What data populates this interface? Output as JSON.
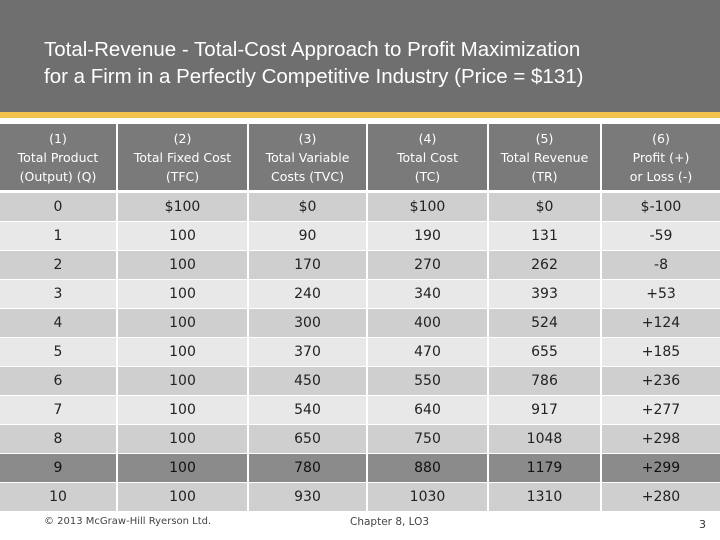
{
  "slide": {
    "title_line1": "Total-Revenue - Total-Cost Approach to Profit Maximization",
    "title_line2": "for a Firm in a Perfectly Competitive Industry (Price = $131)"
  },
  "table": {
    "headers": [
      {
        "num": "(1)",
        "line1": "Total Product",
        "line2": "(Output) (Q)"
      },
      {
        "num": "(2)",
        "line1": "Total Fixed Cost",
        "line2": "(TFC)"
      },
      {
        "num": "(3)",
        "line1": "Total Variable",
        "line2": "Costs (TVC)"
      },
      {
        "num": "(4)",
        "line1": "Total Cost",
        "line2": "(TC)"
      },
      {
        "num": "(5)",
        "line1": "Total Revenue",
        "line2": "(TR)"
      },
      {
        "num": "(6)",
        "line1": "Profit (+)",
        "line2": "or Loss (-)"
      }
    ],
    "rows": [
      [
        "0",
        "$100",
        "$0",
        "$100",
        "$0",
        "$-100"
      ],
      [
        "1",
        "100",
        "90",
        "190",
        "131",
        "-59"
      ],
      [
        "2",
        "100",
        "170",
        "270",
        "262",
        "-8"
      ],
      [
        "3",
        "100",
        "240",
        "340",
        "393",
        "+53"
      ],
      [
        "4",
        "100",
        "300",
        "400",
        "524",
        "+124"
      ],
      [
        "5",
        "100",
        "370",
        "470",
        "655",
        "+185"
      ],
      [
        "6",
        "100",
        "450",
        "550",
        "786",
        "+236"
      ],
      [
        "7",
        "100",
        "540",
        "640",
        "917",
        "+277"
      ],
      [
        "8",
        "100",
        "650",
        "750",
        "1048",
        "+298"
      ],
      [
        "9",
        "100",
        "780",
        "880",
        "1179",
        "+299"
      ],
      [
        "10",
        "100",
        "930",
        "1030",
        "1310",
        "+280"
      ]
    ],
    "highlighted_row_index": 9
  },
  "footer": {
    "copyright": "© 2013 McGraw-Hill Ryerson Ltd.",
    "chapter": "Chapter 8, LO3",
    "page_number": "3"
  }
}
